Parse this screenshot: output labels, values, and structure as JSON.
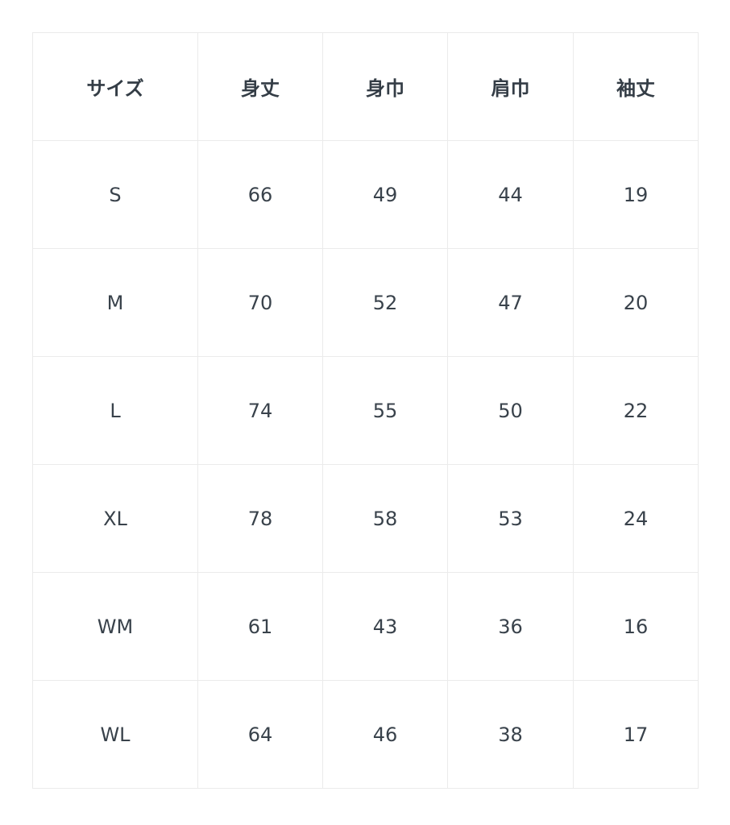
{
  "size_table": {
    "headers": [
      "サイズ",
      "身丈",
      "身巾",
      "肩巾",
      "袖丈"
    ],
    "rows": [
      [
        "S",
        "66",
        "49",
        "44",
        "19"
      ],
      [
        "M",
        "70",
        "52",
        "47",
        "20"
      ],
      [
        "L",
        "74",
        "55",
        "50",
        "22"
      ],
      [
        "XL",
        "78",
        "58",
        "53",
        "24"
      ],
      [
        "WM",
        "61",
        "43",
        "36",
        "16"
      ],
      [
        "WL",
        "64",
        "46",
        "38",
        "17"
      ]
    ]
  }
}
